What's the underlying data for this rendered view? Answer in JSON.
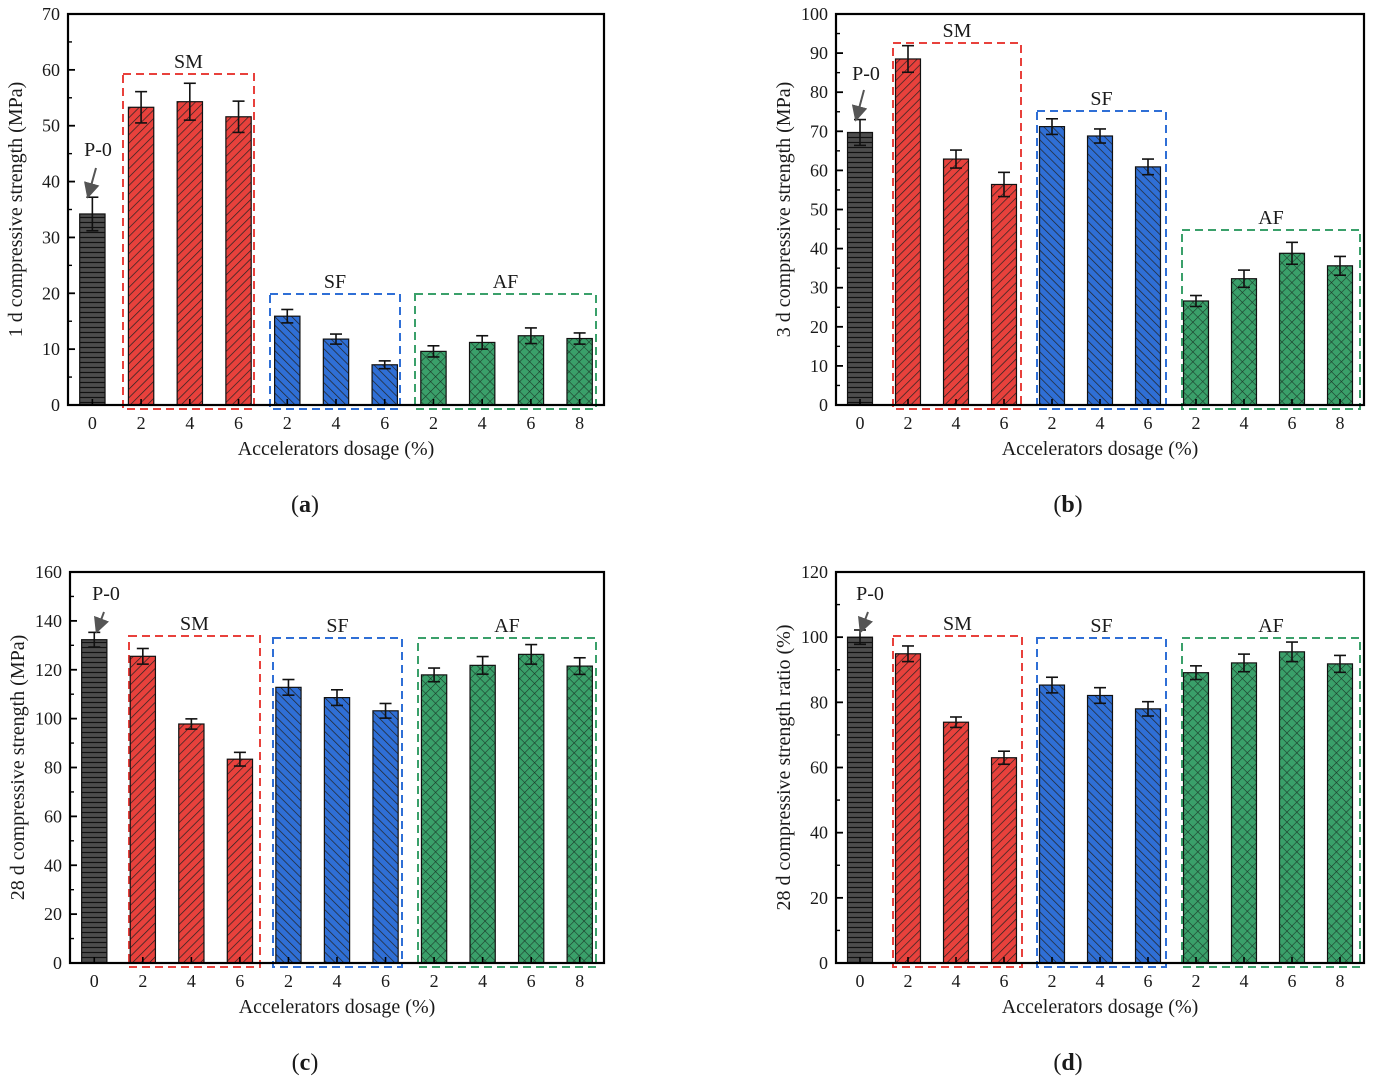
{
  "colors": {
    "P": "#4d4d4d",
    "SM": "#e8413c",
    "SF": "#2f6fd6",
    "AF": "#3aa06a",
    "SM_box": "#e8413c",
    "SF_box": "#2f6fd6",
    "AF_box": "#3aa06a"
  },
  "chart_data": [
    {
      "type": "bar",
      "panel": "(a)",
      "ylabel": "1 d compressive strength (MPa)",
      "xlabel": "Accelerators dosage (%)",
      "ylim": [
        0,
        70
      ],
      "yticks": [
        0,
        10,
        20,
        30,
        40,
        50,
        60,
        70
      ],
      "categories": [
        "0",
        "2",
        "4",
        "6",
        "2",
        "4",
        "6",
        "2",
        "4",
        "6",
        "8"
      ],
      "groups": [
        "P",
        "SM",
        "SM",
        "SM",
        "SF",
        "SF",
        "SF",
        "AF",
        "AF",
        "AF",
        "AF"
      ],
      "values": [
        34.2,
        53.3,
        54.3,
        51.6,
        15.9,
        11.8,
        7.2,
        9.6,
        11.2,
        12.4,
        11.9
      ],
      "errors": [
        3.0,
        2.8,
        3.3,
        2.8,
        1.2,
        0.9,
        0.7,
        1.0,
        1.2,
        1.4,
        1.0
      ],
      "labels": {
        "P": "P-0",
        "SM": "SM",
        "SF": "SF",
        "AF": "AF"
      }
    },
    {
      "type": "bar",
      "panel": "(b)",
      "ylabel": "3 d compressive strength (MPa)",
      "xlabel": "Accelerators dosage (%)",
      "ylim": [
        0,
        100
      ],
      "yticks": [
        0,
        10,
        20,
        30,
        40,
        50,
        60,
        70,
        80,
        90,
        100
      ],
      "categories": [
        "0",
        "2",
        "4",
        "6",
        "2",
        "4",
        "6",
        "2",
        "4",
        "6",
        "8"
      ],
      "groups": [
        "P",
        "SM",
        "SM",
        "SM",
        "SF",
        "SF",
        "SF",
        "AF",
        "AF",
        "AF",
        "AF"
      ],
      "values": [
        69.7,
        88.5,
        62.9,
        56.4,
        71.2,
        68.8,
        60.9,
        26.6,
        32.3,
        38.8,
        35.6
      ],
      "errors": [
        3.3,
        3.4,
        2.3,
        3.1,
        2.0,
        1.8,
        2.0,
        1.4,
        2.2,
        2.8,
        2.4
      ],
      "labels": {
        "P": "P-0",
        "SM": "SM",
        "SF": "SF",
        "AF": "AF"
      }
    },
    {
      "type": "bar",
      "panel": "(c)",
      "ylabel": "28 d compressive strength (MPa)",
      "xlabel": "Accelerators dosage (%)",
      "ylim": [
        0,
        160
      ],
      "yticks": [
        0,
        20,
        40,
        60,
        80,
        100,
        120,
        140,
        160
      ],
      "categories": [
        "0",
        "2",
        "4",
        "6",
        "2",
        "4",
        "6",
        "2",
        "4",
        "6",
        "8"
      ],
      "groups": [
        "P",
        "SM",
        "SM",
        "SM",
        "SF",
        "SF",
        "SF",
        "AF",
        "AF",
        "AF",
        "AF"
      ],
      "values": [
        132.3,
        125.5,
        97.8,
        83.4,
        112.8,
        108.6,
        103.2,
        117.9,
        121.8,
        126.3,
        121.5
      ],
      "errors": [
        3.0,
        3.2,
        2.1,
        2.8,
        3.2,
        3.2,
        3.0,
        2.8,
        3.6,
        4.0,
        3.4
      ],
      "labels": {
        "P": "P-0",
        "SM": "SM",
        "SF": "SF",
        "AF": "AF"
      }
    },
    {
      "type": "bar",
      "panel": "(d)",
      "ylabel": "28 d compressive strength ratio (%)",
      "xlabel": "Accelerators dosage (%)",
      "ylim": [
        0,
        120
      ],
      "yticks": [
        0,
        20,
        40,
        60,
        80,
        100,
        120
      ],
      "categories": [
        "0",
        "2",
        "4",
        "6",
        "2",
        "4",
        "6",
        "2",
        "4",
        "6",
        "8"
      ],
      "groups": [
        "P",
        "SM",
        "SM",
        "SM",
        "SF",
        "SF",
        "SF",
        "AF",
        "AF",
        "AF",
        "AF"
      ],
      "values": [
        100,
        94.9,
        73.9,
        63.0,
        85.3,
        82.1,
        78.0,
        89.1,
        92.1,
        95.5,
        91.8
      ],
      "errors": [
        2.2,
        2.4,
        1.6,
        2.0,
        2.4,
        2.4,
        2.2,
        2.1,
        2.7,
        3.0,
        2.6
      ],
      "labels": {
        "P": "P-0",
        "SM": "SM",
        "SF": "SF",
        "AF": "AF"
      }
    }
  ]
}
